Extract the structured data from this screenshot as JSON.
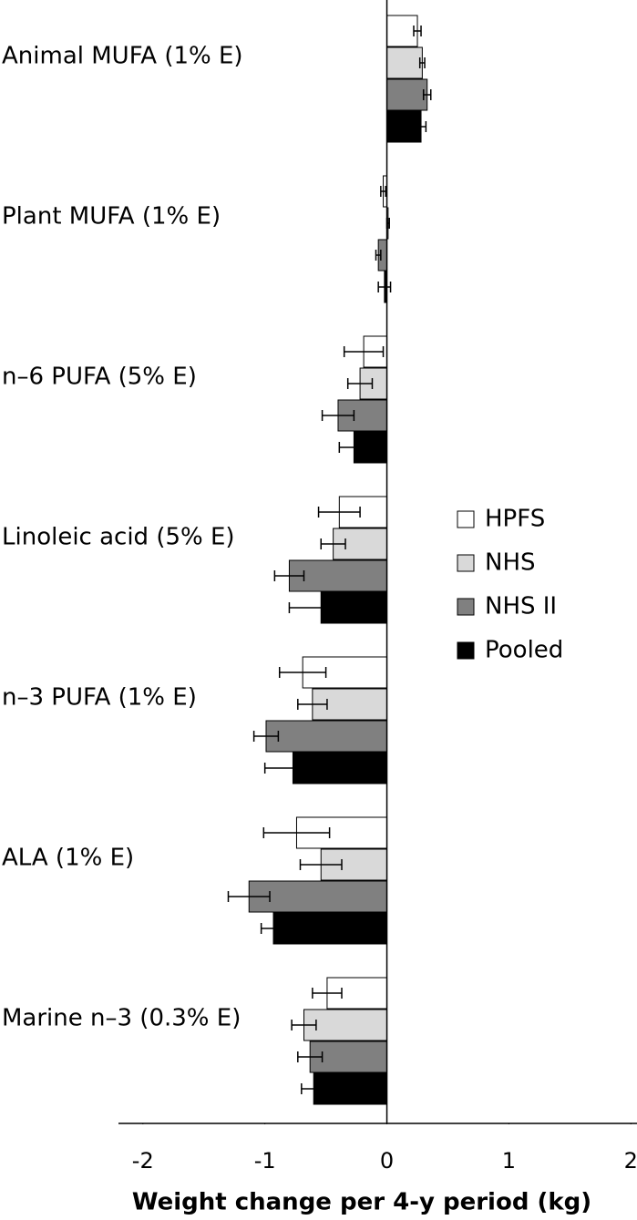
{
  "chart_data": {
    "type": "bar",
    "orientation": "horizontal",
    "xlabel": "Weight change per 4-y period (kg)",
    "categories": [
      "Animal MUFA (1% E)",
      "Plant MUFA (1% E)",
      "n–6 PUFA (5% E)",
      "Linoleic acid (5% E)",
      "n–3 PUFA (1% E)",
      "ALA (1% E)",
      "Marine n–3 (0.3% E)"
    ],
    "series": [
      {
        "name": "HPFS",
        "color": "#ffffff",
        "values": [
          0.25,
          -0.03,
          -0.19,
          -0.39,
          -0.69,
          -0.74,
          -0.49
        ],
        "errors": [
          0.03,
          0.02,
          0.16,
          0.17,
          0.19,
          0.27,
          0.12
        ]
      },
      {
        "name": "NHS",
        "color": "#d9d9d9",
        "values": [
          0.29,
          0.01,
          -0.22,
          -0.44,
          -0.61,
          -0.54,
          -0.68
        ],
        "errors": [
          0.02,
          0.01,
          0.1,
          0.1,
          0.12,
          0.17,
          0.1
        ]
      },
      {
        "name": "NHS II",
        "color": "#808080",
        "values": [
          0.33,
          -0.07,
          -0.4,
          -0.8,
          -0.99,
          -1.13,
          -0.63
        ],
        "errors": [
          0.03,
          0.02,
          0.13,
          0.12,
          0.1,
          0.17,
          0.1
        ]
      },
      {
        "name": "Pooled",
        "color": "#000000",
        "values": [
          0.28,
          -0.02,
          -0.27,
          -0.54,
          -0.77,
          -0.93,
          -0.6
        ],
        "errors": [
          0.04,
          0.05,
          0.12,
          0.26,
          0.23,
          0.1,
          0.1
        ]
      }
    ],
    "xlim": [
      -2.2,
      2.05
    ],
    "xticks": [
      -2,
      -1,
      0,
      1,
      2
    ],
    "grid": false,
    "legend": "right"
  }
}
